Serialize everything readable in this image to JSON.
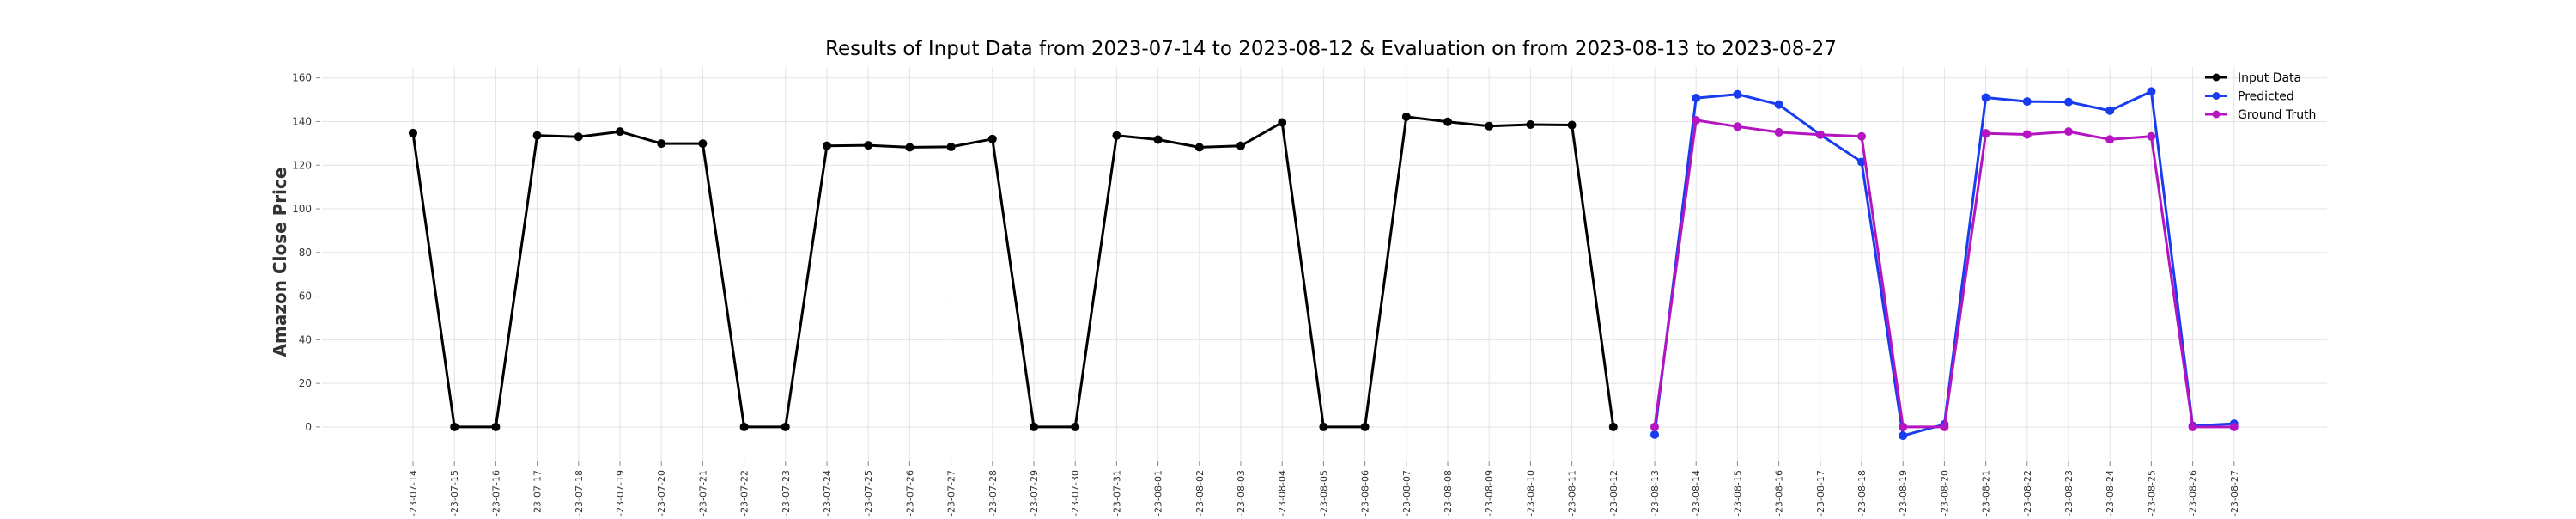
{
  "chart_data": {
    "type": "line",
    "title": "Results of Input Data from 2023-07-14 to 2023-08-12 & Evaluation on from 2023-08-13 to 2023-08-27",
    "xlabel": "",
    "ylabel": "Amazon Close Price",
    "ylim": [
      -15,
      165
    ],
    "yticks": [
      0,
      20,
      40,
      60,
      80,
      100,
      120,
      140,
      160
    ],
    "grid": true,
    "legend_position": "top-right",
    "x_tick_labels": [
      "-23-07-14",
      "-23-07-15",
      "-23-07-16",
      "-23-07-17",
      "-23-07-18",
      "-23-07-19",
      "-23-07-20",
      "-23-07-21",
      "-23-07-22",
      "-23-07-23",
      "-23-07-24",
      "-23-07-25",
      "-23-07-26",
      "-23-07-27",
      "-23-07-28",
      "-23-07-29",
      "-23-07-30",
      "-23-07-31",
      "-23-08-01",
      "-23-08-02",
      "-23-08-03",
      "-23-08-04",
      "-23-08-05",
      "-23-08-06",
      "-23-08-07",
      "-23-08-08",
      "-23-08-09",
      "-23-08-10",
      "-23-08-11",
      "-23-08-12",
      "-23-08-13",
      "-23-08-14",
      "-23-08-15",
      "-23-08-16",
      "-23-08-17",
      "-23-08-18",
      "-23-08-19",
      "-23-08-20",
      "-23-08-21",
      "-23-08-22",
      "-23-08-23",
      "-23-08-24",
      "-23-08-25",
      "-23-08-26",
      "-23-08-27"
    ],
    "series": [
      {
        "name": "Input Data",
        "color": "#000000",
        "x": [
          "2023-07-14",
          "2023-07-15",
          "2023-07-16",
          "2023-07-17",
          "2023-07-18",
          "2023-07-19",
          "2023-07-20",
          "2023-07-21",
          "2023-07-22",
          "2023-07-23",
          "2023-07-24",
          "2023-07-25",
          "2023-07-26",
          "2023-07-27",
          "2023-07-28",
          "2023-07-29",
          "2023-07-30",
          "2023-07-31",
          "2023-08-01",
          "2023-08-02",
          "2023-08-03",
          "2023-08-04",
          "2023-08-05",
          "2023-08-06",
          "2023-08-07",
          "2023-08-08",
          "2023-08-09",
          "2023-08-10",
          "2023-08-11",
          "2023-08-12"
        ],
        "values": [
          134.7,
          0,
          0,
          133.6,
          133.0,
          135.4,
          129.9,
          129.9,
          0,
          0,
          128.9,
          129.1,
          128.2,
          128.4,
          132.0,
          0,
          0,
          133.6,
          131.7,
          128.2,
          128.9,
          139.6,
          0,
          0,
          142.2,
          139.9,
          137.9,
          138.6,
          138.4,
          0
        ]
      },
      {
        "name": "Predicted",
        "color": "#1a3cf0",
        "x": [
          "2023-08-13",
          "2023-08-14",
          "2023-08-15",
          "2023-08-16",
          "2023-08-17",
          "2023-08-18",
          "2023-08-19",
          "2023-08-20",
          "2023-08-21",
          "2023-08-22",
          "2023-08-23",
          "2023-08-24",
          "2023-08-25",
          "2023-08-26",
          "2023-08-27"
        ],
        "values": [
          -3.5,
          150.8,
          152.5,
          147.8,
          134.0,
          121.5,
          -4.0,
          1.2,
          151.0,
          149.2,
          149.0,
          145.0,
          153.8,
          0.5,
          1.5
        ]
      },
      {
        "name": "Ground Truth",
        "color": "#b515c0",
        "x": [
          "2023-08-13",
          "2023-08-14",
          "2023-08-15",
          "2023-08-16",
          "2023-08-17",
          "2023-08-18",
          "2023-08-19",
          "2023-08-20",
          "2023-08-21",
          "2023-08-22",
          "2023-08-23",
          "2023-08-24",
          "2023-08-25",
          "2023-08-26",
          "2023-08-27"
        ],
        "values": [
          0,
          140.6,
          137.7,
          135.1,
          134.0,
          133.2,
          0,
          0,
          134.6,
          134.1,
          135.4,
          131.8,
          133.2,
          0,
          0
        ]
      }
    ]
  }
}
